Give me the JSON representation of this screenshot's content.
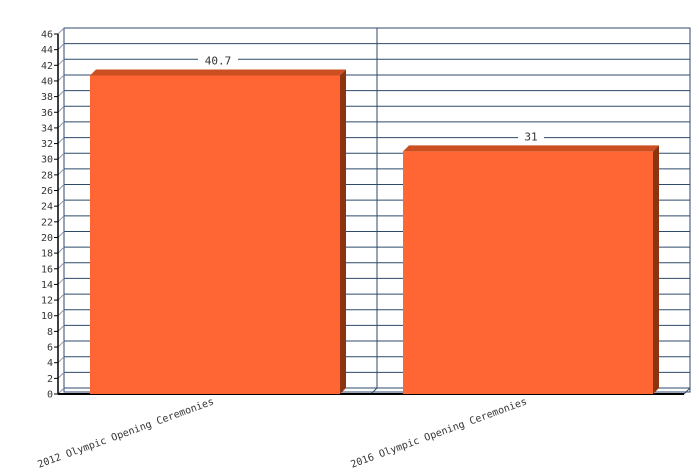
{
  "chart_data": {
    "type": "bar",
    "categories": [
      "2012 Olympic Opening Ceremonies",
      "2016 Olympic Opening Ceremonies"
    ],
    "values": [
      40.7,
      31
    ],
    "data_labels": [
      "40.7",
      "31"
    ],
    "title": "",
    "xlabel": "",
    "ylabel": "",
    "ylim": [
      0,
      46
    ],
    "yticks": [
      0,
      2,
      4,
      6,
      8,
      10,
      12,
      14,
      16,
      18,
      20,
      22,
      24,
      26,
      28,
      30,
      32,
      34,
      36,
      38,
      40,
      42,
      44,
      46
    ],
    "grid": true,
    "style": "3d",
    "colors": {
      "bar": "#ff6633",
      "bar_top": "#cc4f22",
      "bar_side": "#8a3412",
      "grid": "#2d4a6b"
    }
  }
}
